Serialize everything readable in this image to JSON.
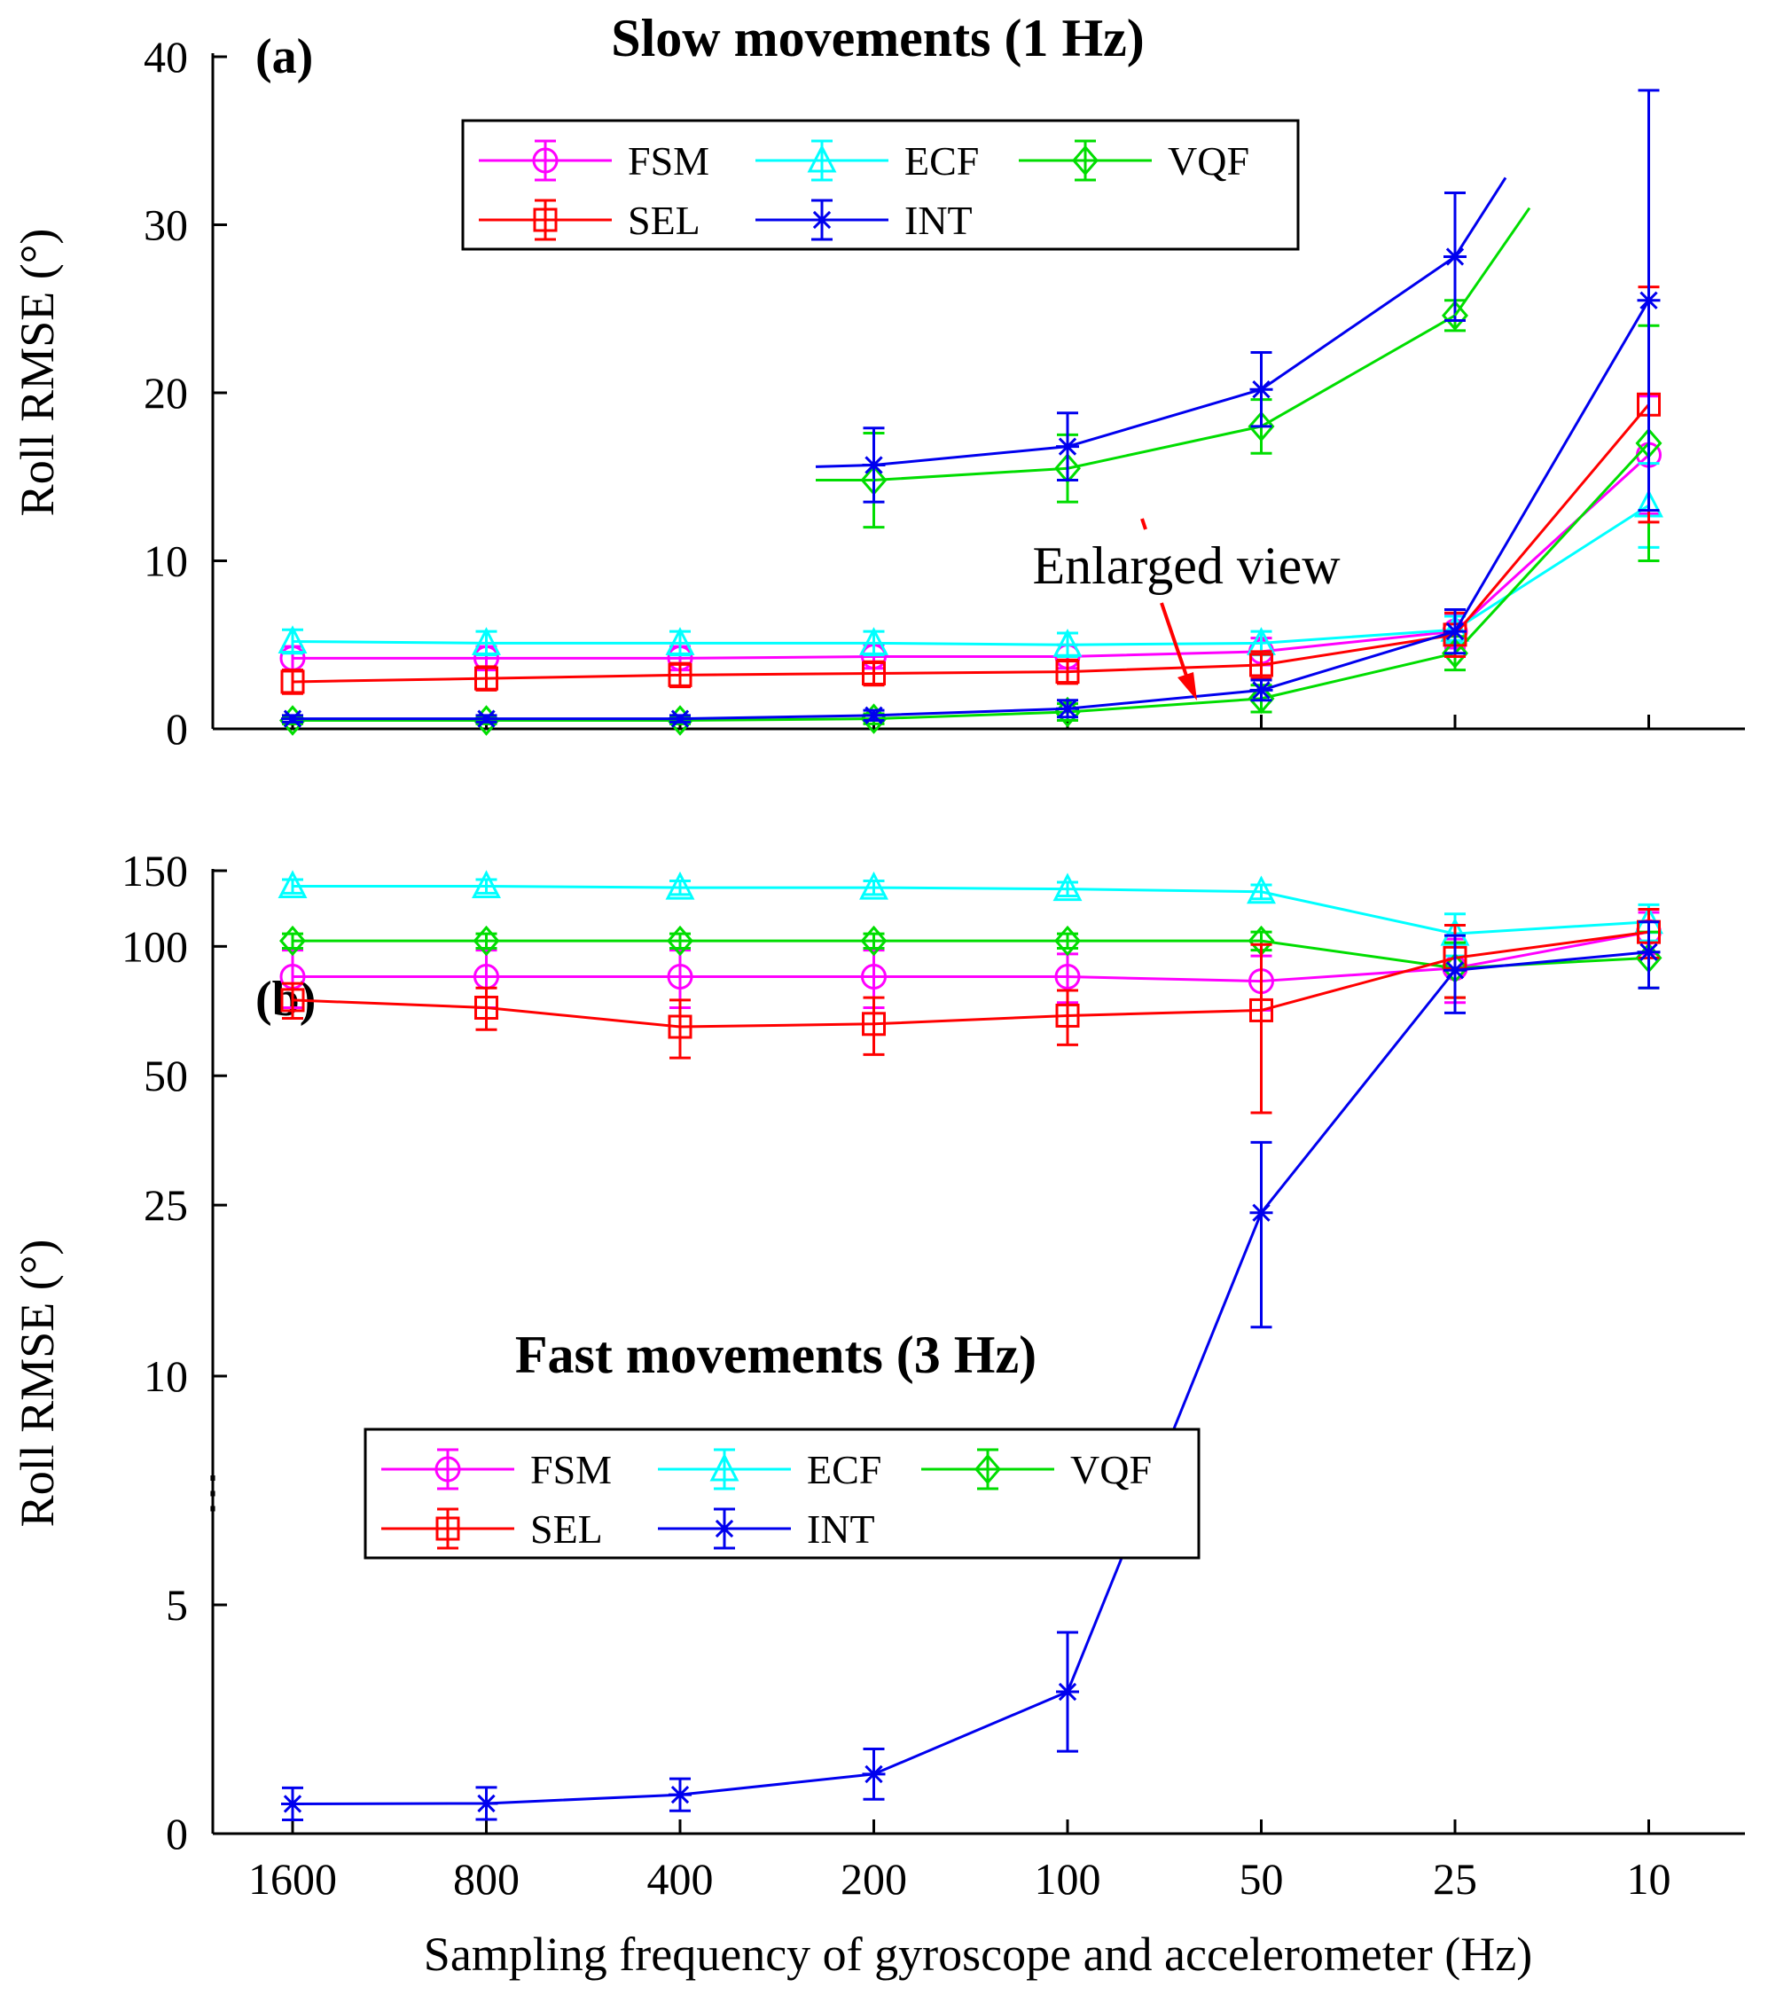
{
  "chart_data": [
    {
      "type": "line",
      "panel_label": "(a)",
      "title": "Slow movements (1 Hz)",
      "xlabel": "",
      "ylabel": "Roll RMSE (°)",
      "categories": [
        "1600",
        "800",
        "400",
        "200",
        "100",
        "50",
        "25",
        "10"
      ],
      "ylim": [
        0,
        40
      ],
      "yticks": [
        0,
        10,
        20,
        30,
        40
      ],
      "annotation": "Enlarged view",
      "series": [
        {
          "name": "FSM",
          "key": "fsm",
          "values": [
            4.2,
            4.2,
            4.2,
            4.3,
            4.3,
            4.6,
            5.8,
            16.3
          ],
          "errors": [
            0.7,
            0.7,
            0.7,
            0.7,
            0.7,
            0.8,
            1.0,
            3.5
          ]
        },
        {
          "name": "ECF",
          "key": "ecf",
          "values": [
            5.2,
            5.1,
            5.1,
            5.1,
            5.0,
            5.1,
            5.9,
            13.3
          ],
          "errors": [
            0.7,
            0.7,
            0.7,
            0.7,
            0.7,
            0.7,
            0.8,
            2.5
          ]
        },
        {
          "name": "VQF",
          "key": "vqf",
          "values": [
            0.5,
            0.5,
            0.5,
            0.6,
            1.0,
            1.8,
            4.5,
            17.0
          ],
          "errors": [
            0.2,
            0.2,
            0.2,
            0.3,
            0.5,
            0.8,
            1.0,
            7.0
          ]
        },
        {
          "name": "SEL",
          "key": "sel",
          "values": [
            2.8,
            3.0,
            3.2,
            3.3,
            3.4,
            3.8,
            5.6,
            19.3
          ],
          "errors": [
            0.7,
            0.7,
            0.7,
            0.7,
            0.7,
            0.8,
            1.3,
            7.0
          ]
        },
        {
          "name": "INT",
          "key": "int",
          "values": [
            0.6,
            0.6,
            0.6,
            0.8,
            1.2,
            2.3,
            5.8,
            25.5
          ],
          "errors": [
            0.2,
            0.2,
            0.2,
            0.3,
            0.5,
            0.6,
            1.3,
            12.5
          ]
        }
      ],
      "inset": {
        "description": "enlarged curves for 200 Hz to 25 Hz",
        "series": [
          {
            "name": "VQF",
            "key": "vqf",
            "values": [
              14.8,
              15.5,
              18.0,
              24.6
            ],
            "errors": [
              2.8,
              2.0,
              1.6,
              0.9
            ]
          },
          {
            "name": "INT",
            "key": "int",
            "values": [
              15.7,
              16.8,
              20.2,
              28.1
            ],
            "errors": [
              2.2,
              2.0,
              2.2,
              3.8
            ]
          }
        ]
      }
    },
    {
      "type": "line",
      "panel_label": "(b)",
      "title": "Fast movements (3 Hz)",
      "xlabel": "Sampling frequency of gyroscope and accelerometer (Hz)",
      "ylabel": "Roll RMSE (°)",
      "categories": [
        "1600",
        "800",
        "400",
        "200",
        "100",
        "50",
        "25",
        "10"
      ],
      "y_axis": "broken (lower 0–10 and upper 10–150 on different scales)",
      "yticks": [
        0,
        5,
        10,
        25,
        50,
        100,
        150
      ],
      "axis_break_symbol": "⋮",
      "series": [
        {
          "name": "FSM",
          "key": "fsm",
          "values": [
            85,
            85,
            85,
            85,
            85,
            83,
            89,
            108
          ],
          "errors": [
            13,
            13,
            13,
            13,
            11,
            12,
            15,
            12
          ]
        },
        {
          "name": "ECF",
          "key": "ecf",
          "values": [
            138,
            138,
            137,
            137,
            136,
            134,
            107,
            114
          ],
          "errors": [
            5,
            5,
            5,
            5,
            5,
            5,
            12,
            11
          ]
        },
        {
          "name": "VQF",
          "key": "vqf",
          "values": [
            103,
            103,
            103,
            103,
            103,
            103,
            89,
            94
          ],
          "errors": [
            4,
            4,
            4,
            4,
            4,
            5,
            13,
            14
          ]
        },
        {
          "name": "SEL",
          "key": "sel",
          "values": [
            75,
            72,
            65,
            66,
            69,
            71,
            94,
            108
          ],
          "errors": [
            7,
            8,
            10,
            10,
            10,
            30,
            18,
            14
          ]
        },
        {
          "name": "INT",
          "key": "int",
          "values": [
            0.65,
            0.66,
            0.85,
            1.3,
            3.1,
            24,
            88,
            97
          ],
          "errors": [
            0.35,
            0.35,
            0.35,
            0.55,
            1.3,
            11,
            18,
            17
          ]
        }
      ]
    }
  ],
  "legend": {
    "order": [
      "fsm",
      "ecf",
      "vqf",
      "sel",
      "int"
    ],
    "labels": {
      "fsm": "FSM",
      "ecf": "ECF",
      "vqf": "VQF",
      "sel": "SEL",
      "int": "INT"
    },
    "colors": {
      "fsm": "#ff00ff",
      "ecf": "#00ffff",
      "vqf": "#00dd00",
      "sel": "#ff0000",
      "int": "#0000ee"
    },
    "markers": {
      "fsm": "circle",
      "ecf": "triangle",
      "vqf": "diamond",
      "sel": "square",
      "int": "asterisk"
    }
  }
}
